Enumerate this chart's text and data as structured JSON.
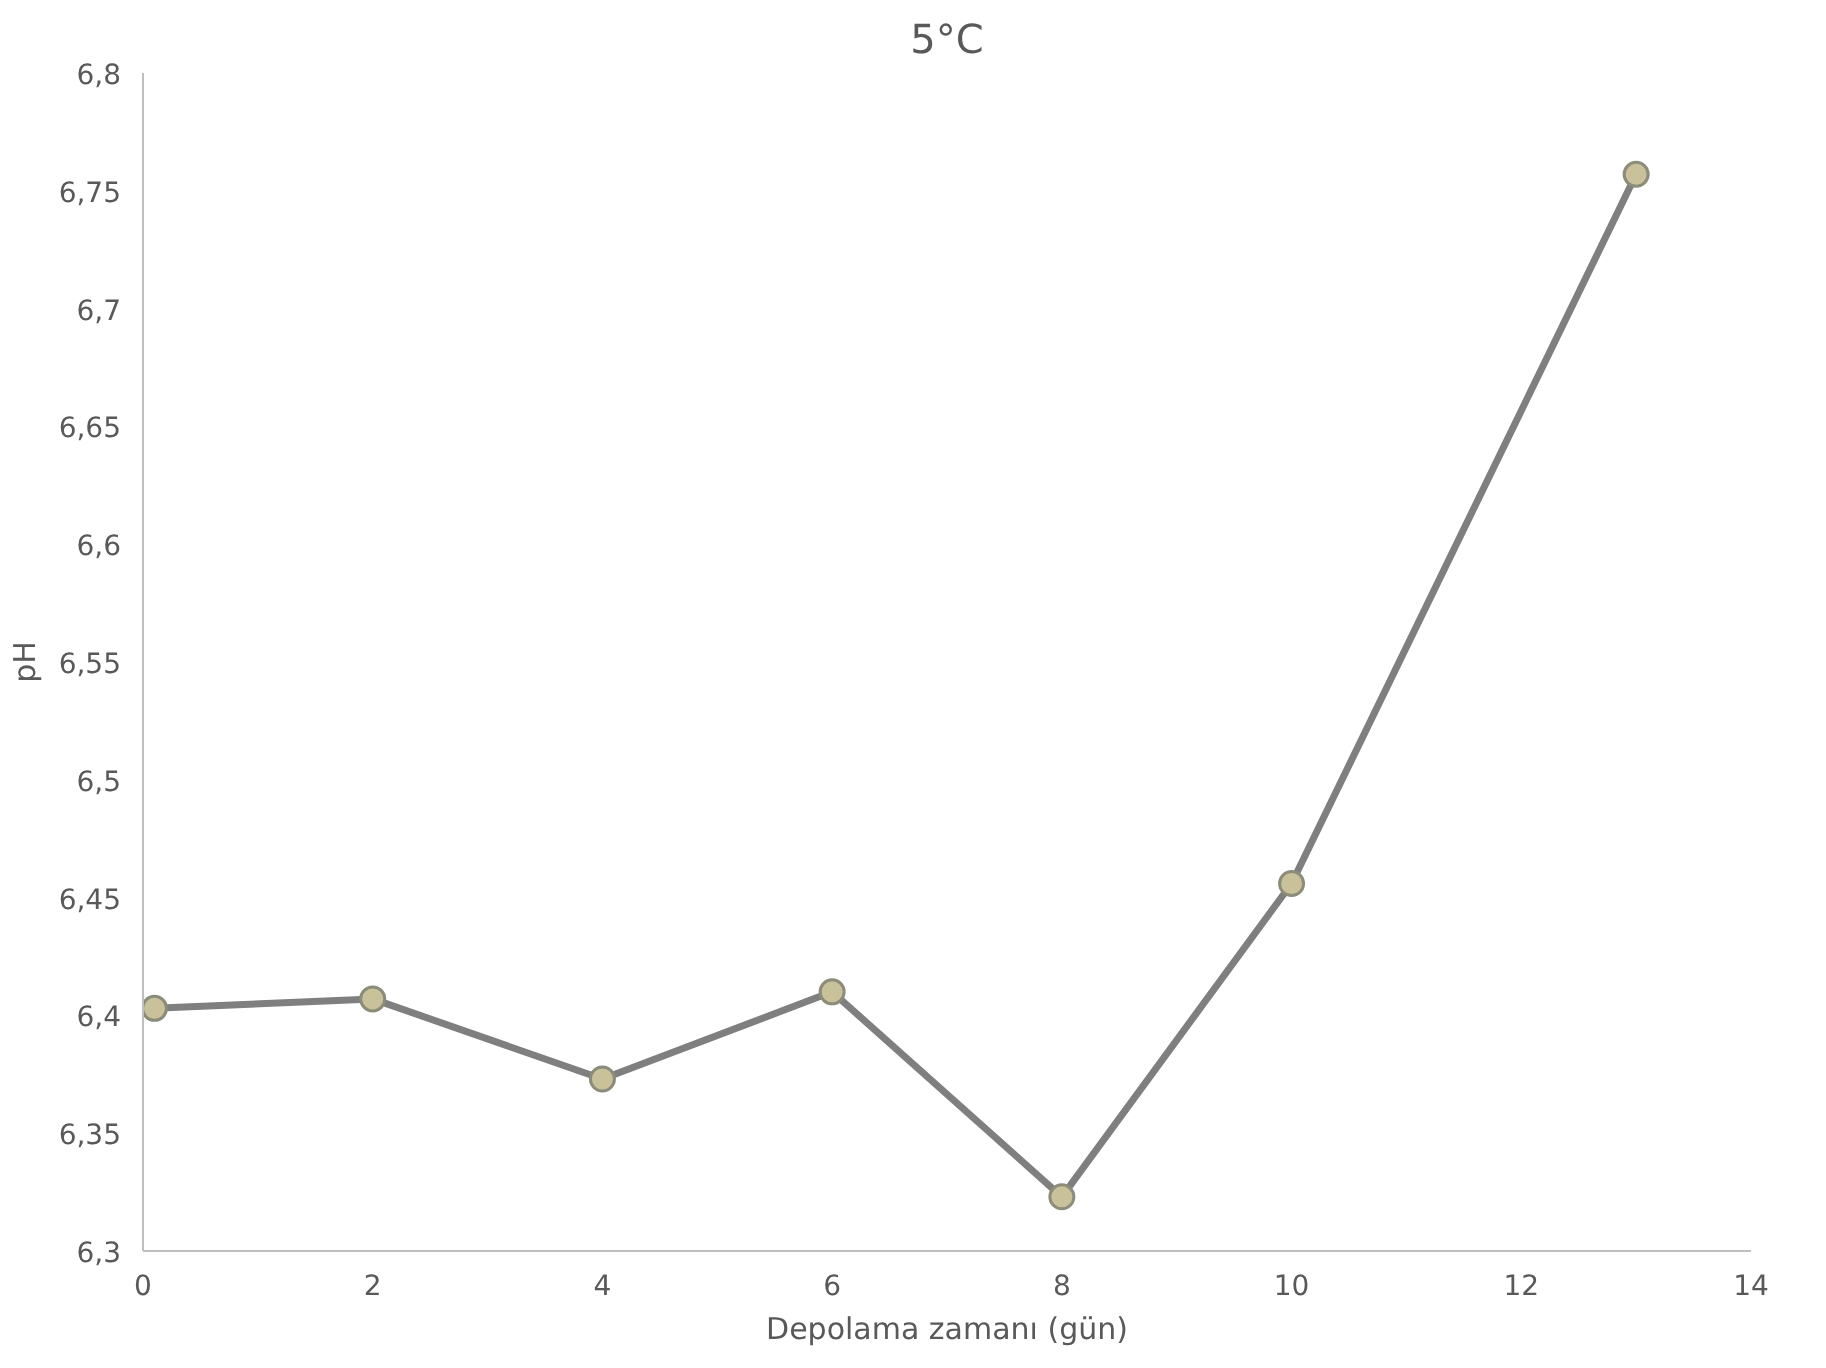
{
  "chart_data": {
    "type": "line",
    "title": "5°C",
    "xlabel": "Depolama zamanı (gün)",
    "ylabel": "pH",
    "x": [
      0.1,
      2,
      4,
      6,
      8,
      10,
      13
    ],
    "series": [
      {
        "color": "#7f7f7f",
        "values": [
          6.403,
          6.407,
          6.373,
          6.41,
          6.323,
          6.456,
          6.757
        ]
      }
    ],
    "xlim": [
      0,
      14
    ],
    "xticks": [
      0,
      2,
      4,
      6,
      8,
      10,
      12,
      14
    ],
    "ylim": [
      6.3,
      6.8
    ],
    "yticks": [
      {
        "value": 6.3,
        "label": "6,3"
      },
      {
        "value": 6.35,
        "label": "6,35"
      },
      {
        "value": 6.4,
        "label": "6,4"
      },
      {
        "value": 6.45,
        "label": "6,45"
      },
      {
        "value": 6.5,
        "label": "6,5"
      },
      {
        "value": 6.55,
        "label": "6,55"
      },
      {
        "value": 6.6,
        "label": "6,6"
      },
      {
        "value": 6.65,
        "label": "6,65"
      },
      {
        "value": 6.7,
        "label": "6,7"
      },
      {
        "value": 6.75,
        "label": "6,75"
      },
      {
        "value": 6.8,
        "label": "6,8"
      }
    ],
    "grid": false,
    "marker": "circle",
    "line_style": "solid"
  }
}
